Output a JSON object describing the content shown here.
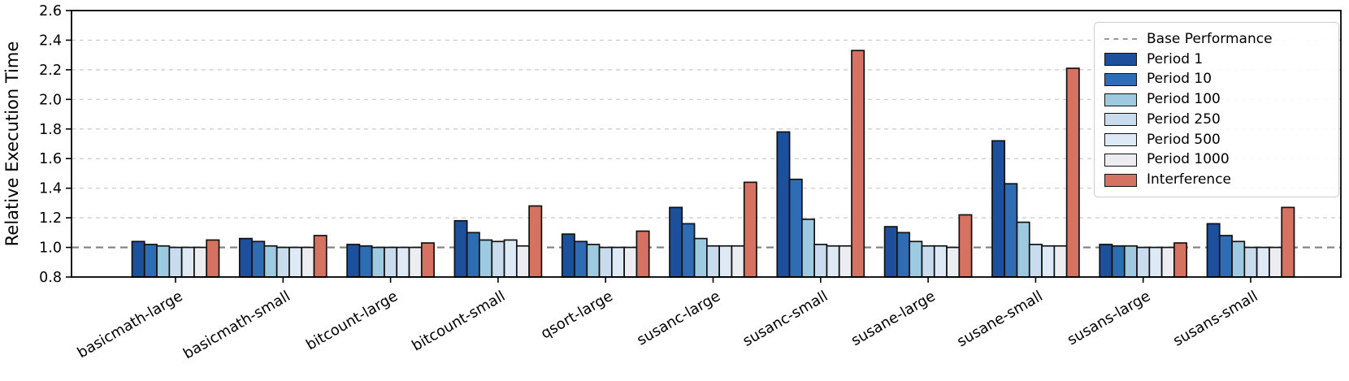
{
  "figure": {
    "background": "#ffffff",
    "bar_edge_color": "#111111",
    "grid_color": "#c9c9c9",
    "baseline_color": "#7f7f7f",
    "axis_color": "#000000"
  },
  "chart_data": {
    "type": "bar",
    "title": "",
    "xlabel": "",
    "ylabel": "Relative Execution Time",
    "ylim": [
      0.8,
      2.6
    ],
    "ytick_step": 0.2,
    "ytick_labels": [
      "0.8",
      "1.0",
      "1.2",
      "1.4",
      "1.6",
      "1.8",
      "2.0",
      "2.2",
      "2.4",
      "2.6"
    ],
    "grid": "horizontal-dashed",
    "legend_position": "upper-right",
    "baseline": {
      "label": "Base Performance",
      "value": 1.0
    },
    "categories": [
      "basicmath-large",
      "basicmath-small",
      "bitcount-large",
      "bitcount-small",
      "qsort-large",
      "susanc-large",
      "susanc-small",
      "susane-large",
      "susane-small",
      "susans-large",
      "susans-small"
    ],
    "series": [
      {
        "name": "Period 1",
        "color": "#1c4f9c",
        "values": [
          1.04,
          1.06,
          1.02,
          1.18,
          1.09,
          1.27,
          1.78,
          1.14,
          1.72,
          1.02,
          1.16
        ]
      },
      {
        "name": "Period 10",
        "color": "#2e6db4",
        "values": [
          1.02,
          1.04,
          1.01,
          1.1,
          1.04,
          1.16,
          1.46,
          1.1,
          1.43,
          1.01,
          1.08
        ]
      },
      {
        "name": "Period 100",
        "color": "#9ecae1",
        "values": [
          1.01,
          1.01,
          1.0,
          1.05,
          1.02,
          1.06,
          1.19,
          1.04,
          1.17,
          1.01,
          1.04
        ]
      },
      {
        "name": "Period 250",
        "color": "#c9dcee",
        "values": [
          1.0,
          1.0,
          1.0,
          1.04,
          1.0,
          1.01,
          1.02,
          1.01,
          1.02,
          1.0,
          1.0
        ]
      },
      {
        "name": "Period 500",
        "color": "#dde9f4",
        "values": [
          1.0,
          1.0,
          1.0,
          1.05,
          1.0,
          1.01,
          1.01,
          1.01,
          1.01,
          1.0,
          1.0
        ]
      },
      {
        "name": "Period 1000",
        "color": "#ebedf0",
        "values": [
          1.0,
          1.0,
          1.0,
          1.01,
          1.0,
          1.01,
          1.01,
          1.0,
          1.01,
          1.0,
          1.0
        ]
      },
      {
        "name": "Interference",
        "color": "#d57261",
        "values": [
          1.05,
          1.08,
          1.03,
          1.28,
          1.11,
          1.44,
          2.33,
          1.22,
          2.21,
          1.03,
          1.27
        ]
      }
    ]
  }
}
